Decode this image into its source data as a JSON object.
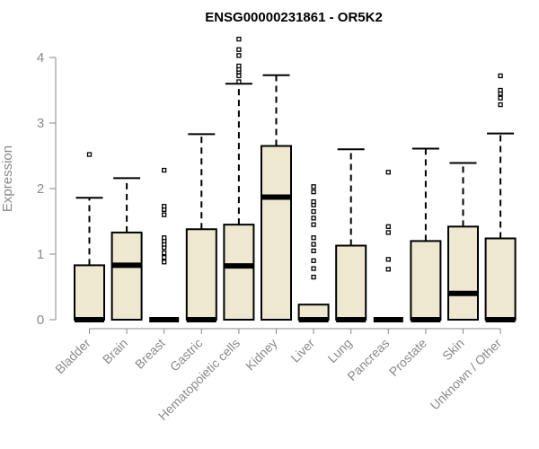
{
  "chart_data": {
    "type": "box",
    "title": "ENSG00000231861 - OR5K2",
    "ylabel": "Expression",
    "xlabel": "",
    "ylim": [
      0,
      4.3
    ],
    "yticks": [
      0,
      1,
      2,
      3,
      4
    ],
    "box_fill": "#efe8d0",
    "box_stroke": "#000000",
    "categories": [
      "Bladder",
      "Brain",
      "Breast",
      "Gastric",
      "Hematopoietic cells",
      "Kidney",
      "Liver",
      "Lung",
      "Pancreas",
      "Prostate",
      "Skin",
      "Unknown / Other"
    ],
    "boxes": [
      {
        "min": 0,
        "q1": 0,
        "median": 0,
        "q3": 0.83,
        "max": 1.86,
        "outliers": [
          2.52
        ]
      },
      {
        "min": 0,
        "q1": 0,
        "median": 0.83,
        "q3": 1.33,
        "max": 2.16,
        "outliers": []
      },
      {
        "min": 0,
        "q1": 0,
        "median": 0,
        "q3": 0,
        "max": 0,
        "outliers": [
          0.88,
          0.95,
          1.02,
          1.1,
          1.15,
          1.2,
          1.25,
          1.6,
          1.68,
          1.73,
          2.28
        ]
      },
      {
        "min": 0,
        "q1": 0,
        "median": 0,
        "q3": 1.38,
        "max": 2.83,
        "outliers": []
      },
      {
        "min": 0,
        "q1": 0,
        "median": 0.82,
        "q3": 1.45,
        "max": 3.6,
        "outliers": [
          3.63,
          3.72,
          3.78,
          3.82,
          3.87,
          4.03,
          4.12,
          4.28
        ]
      },
      {
        "min": 0,
        "q1": 0,
        "median": 1.87,
        "q3": 2.65,
        "max": 3.73,
        "outliers": []
      },
      {
        "min": 0,
        "q1": 0,
        "median": 0,
        "q3": 0.23,
        "max": 0.23,
        "outliers": [
          0.65,
          0.78,
          0.9,
          1.05,
          1.15,
          1.25,
          1.45,
          1.55,
          1.65,
          1.75,
          1.8,
          1.95,
          2.03
        ]
      },
      {
        "min": 0,
        "q1": 0,
        "median": 0,
        "q3": 1.13,
        "max": 2.6,
        "outliers": []
      },
      {
        "min": 0,
        "q1": 0,
        "median": 0,
        "q3": 0,
        "max": 0,
        "outliers": [
          0.77,
          0.92,
          1.33,
          1.42,
          2.25
        ]
      },
      {
        "min": 0,
        "q1": 0,
        "median": 0,
        "q3": 1.2,
        "max": 2.61,
        "outliers": []
      },
      {
        "min": 0,
        "q1": 0,
        "median": 0.4,
        "q3": 1.42,
        "max": 2.39,
        "outliers": []
      },
      {
        "min": 0,
        "q1": 0,
        "median": 0,
        "q3": 1.24,
        "max": 2.84,
        "outliers": [
          3.28,
          3.38,
          3.45,
          3.5,
          3.72
        ]
      }
    ]
  }
}
